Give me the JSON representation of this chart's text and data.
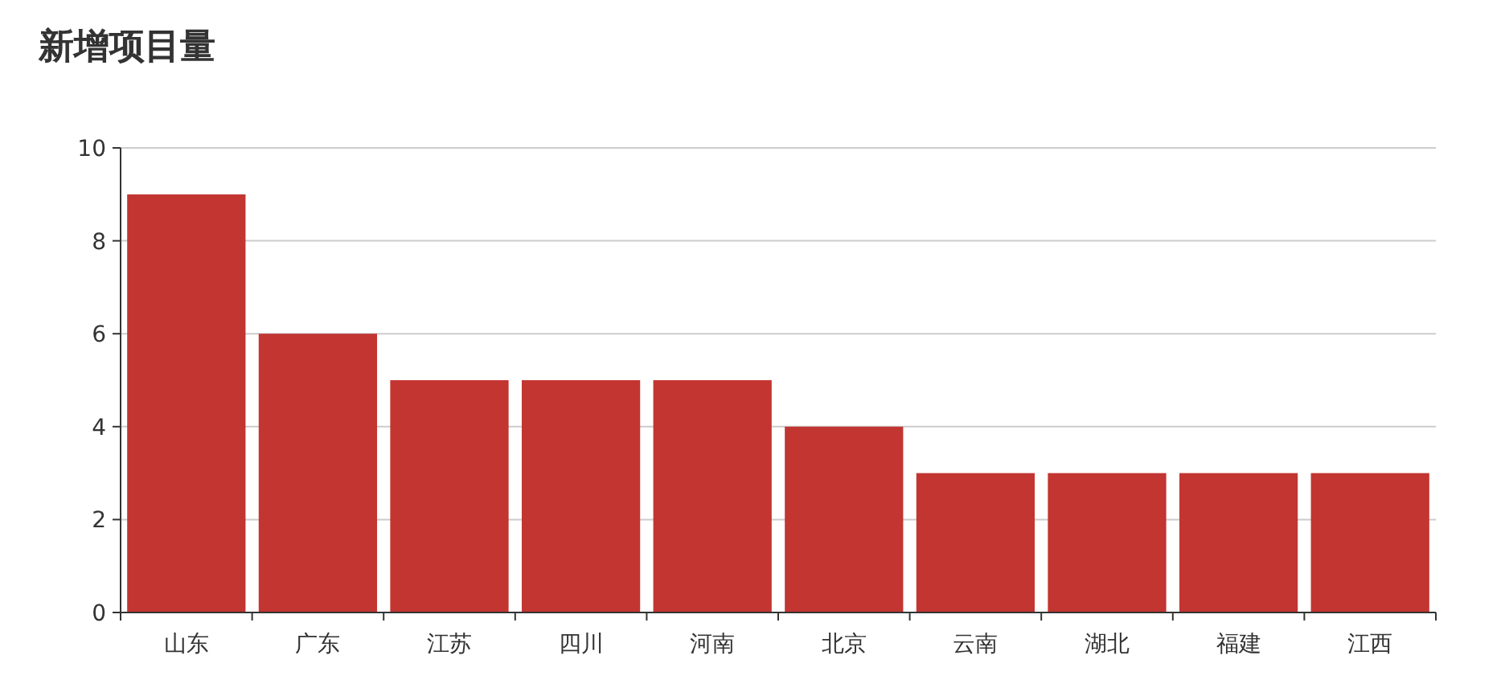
{
  "chart_data": {
    "type": "bar",
    "title": "新增项目量",
    "categories": [
      "山东",
      "广东",
      "江苏",
      "四川",
      "河南",
      "北京",
      "云南",
      "湖北",
      "福建",
      "江西"
    ],
    "values": [
      9,
      6,
      5,
      5,
      5,
      4,
      3,
      3,
      3,
      3
    ],
    "color": "#c23531",
    "ylim": [
      0,
      10
    ],
    "yticks": [
      0,
      2,
      4,
      6,
      8,
      10
    ],
    "grid": "y"
  }
}
